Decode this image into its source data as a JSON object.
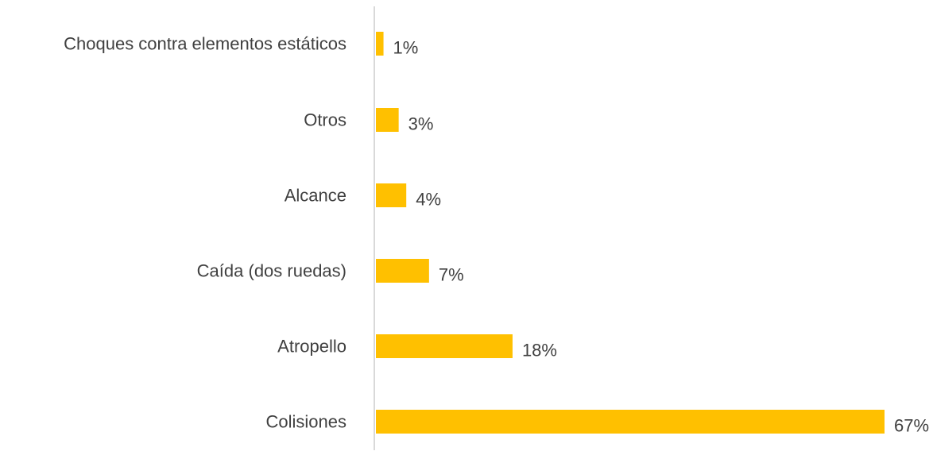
{
  "chart_data": {
    "type": "bar",
    "orientation": "horizontal",
    "title": "",
    "xlabel": "",
    "ylabel": "",
    "categories": [
      "Choques contra elementos estáticos",
      "Otros",
      "Alcance",
      "Caída (dos ruedas)",
      "Atropello",
      "Colisiones"
    ],
    "values": [
      1,
      3,
      4,
      7,
      18,
      67
    ],
    "value_labels": [
      "1%",
      "3%",
      "4%",
      "7%",
      "18%",
      "67%"
    ],
    "unit": "%",
    "xlim": [
      0,
      67
    ],
    "grid": false,
    "legend": "none",
    "bar_color": "#FFC000",
    "axis_color": "#D9D9D9",
    "text_color": "#404040"
  }
}
